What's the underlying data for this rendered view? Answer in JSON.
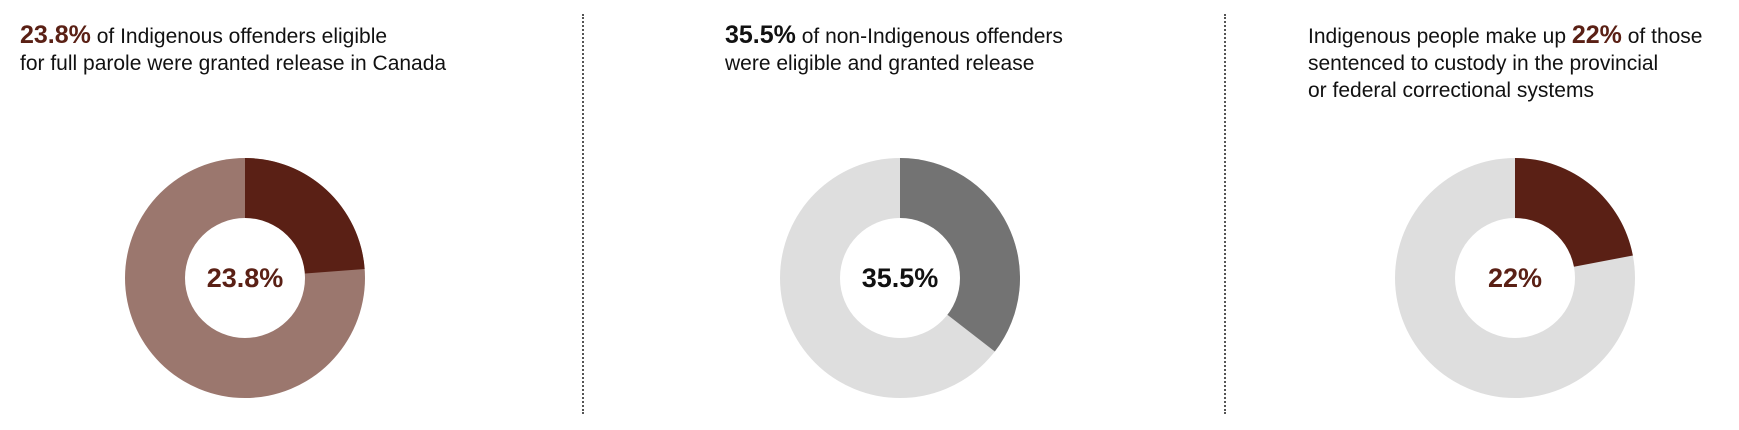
{
  "colors": {
    "brown": "#5a2015",
    "brown_light": "#9b776e",
    "gray_dark": "#737373",
    "gray_light": "#dedede",
    "black": "#111111"
  },
  "chart_data": [
    {
      "type": "pie",
      "variant": "donut",
      "value": 23.8,
      "center_label": "23.8%",
      "fill_color": "#5a2015",
      "rest_color": "#9b776e",
      "label_color": "#5a2015",
      "caption": {
        "lines": [
          {
            "pre": "",
            "pct": "23.8%",
            "post": " of Indigenous offenders eligible"
          },
          {
            "pre": "for full parole were granted release in Canada",
            "pct": "",
            "post": ""
          }
        ],
        "pct_color": "#5a2015"
      }
    },
    {
      "type": "pie",
      "variant": "donut",
      "value": 35.5,
      "center_label": "35.5%",
      "fill_color": "#737373",
      "rest_color": "#dedede",
      "label_color": "#111111",
      "caption": {
        "lines": [
          {
            "pre": "",
            "pct": "35.5%",
            "post": " of non-Indigenous offenders"
          },
          {
            "pre": "were eligible and granted release",
            "pct": "",
            "post": ""
          }
        ],
        "pct_color": "#111111"
      }
    },
    {
      "type": "pie",
      "variant": "donut",
      "value": 22,
      "center_label": "22%",
      "fill_color": "#5a2015",
      "rest_color": "#dedede",
      "label_color": "#5a2015",
      "caption": {
        "lines": [
          {
            "pre": "Indigenous people make up ",
            "pct": "22%",
            "post": " of those"
          },
          {
            "pre": "sentenced to custody in the provincial",
            "pct": "",
            "post": ""
          },
          {
            "pre": "or federal correctional systems",
            "pct": "",
            "post": ""
          }
        ],
        "pct_color": "#5a2015"
      }
    }
  ]
}
